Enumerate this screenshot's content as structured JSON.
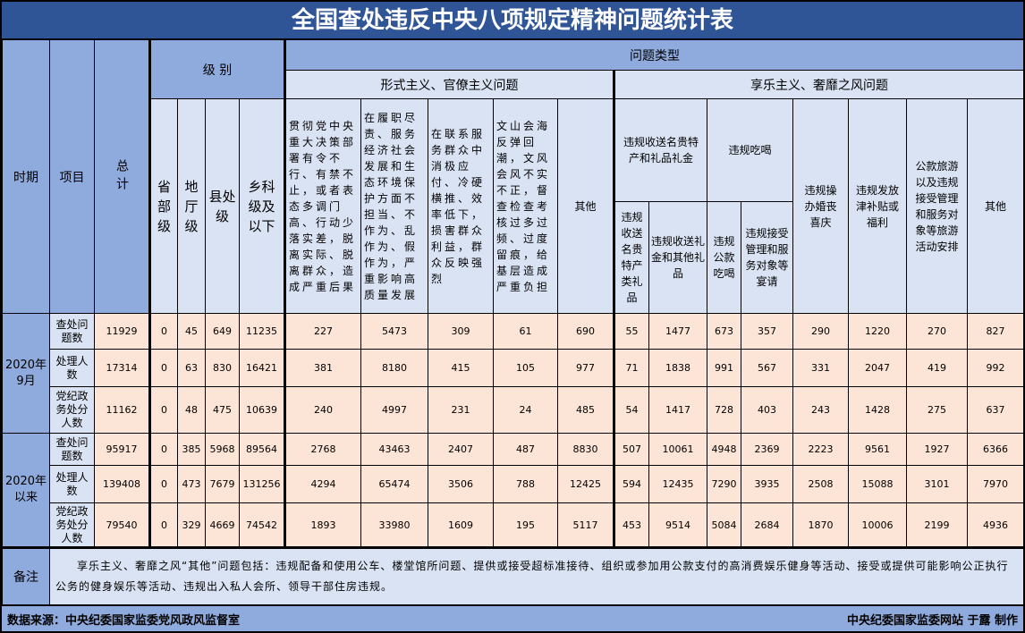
{
  "title": "全国查处违反中央八项规定精神问题统计表",
  "headers": {
    "period": "时期",
    "item": "项目",
    "total": "总计",
    "level": "级 别",
    "problem_type": "问题类型",
    "levels": [
      "省部级",
      "地厅级",
      "县处级",
      "乡科级及以下"
    ],
    "formalism": "形式主义、官僚主义问题",
    "formalism_cols": [
      "贯彻党中央重大决策部署有令不行、有禁不止，或者表态多调门高、行动少落实差，脱离实际、脱离群众，造成严重后果",
      "在履职尽责、服务经济社会发展和生态环境保护方面不担当、不作为、乱作为、假作为，严重影响高质量发展",
      "在联系服务群众中消极应付、冷硬横推、效率低下，损害群众利益，群众反映强烈",
      "文山会海反弹回潮，文风会风不实不正，督查检查考核过多过频、过度留痕，给基层造成严重负担",
      "其他"
    ],
    "hedonism": "享乐主义、奢靡之风问题",
    "gift_group": "违规收送名贵特产和礼品礼金",
    "gift_cols": [
      "违规收送名贵特产类礼品",
      "违规收送礼金和其他礼品"
    ],
    "meal_group": "违规吃喝",
    "meal_cols": [
      "违规公款吃喝",
      "违规接受管理和服务对象等宴请"
    ],
    "hedonism_cols": [
      "违规操办婚丧喜庆",
      "违规发放津补贴或福利",
      "公款旅游以及违规接受管理和服务对象等旅游活动安排",
      "其他"
    ]
  },
  "periods": [
    {
      "label": "2020年9月",
      "rows": [
        {
          "item": "查处问题数",
          "values": [
            "11929",
            "0",
            "45",
            "649",
            "11235",
            "227",
            "5473",
            "309",
            "61",
            "690",
            "55",
            "1477",
            "673",
            "357",
            "290",
            "1220",
            "270",
            "827"
          ]
        },
        {
          "item": "处理人数",
          "values": [
            "17314",
            "0",
            "63",
            "830",
            "16421",
            "381",
            "8180",
            "415",
            "105",
            "977",
            "71",
            "1838",
            "991",
            "567",
            "331",
            "2047",
            "419",
            "992"
          ]
        },
        {
          "item": "党纪政务处分人数",
          "values": [
            "11162",
            "0",
            "48",
            "475",
            "10639",
            "240",
            "4997",
            "231",
            "24",
            "485",
            "54",
            "1417",
            "728",
            "403",
            "243",
            "1428",
            "275",
            "637"
          ]
        }
      ]
    },
    {
      "label": "2020年以来",
      "rows": [
        {
          "item": "查处问题数",
          "values": [
            "95917",
            "0",
            "385",
            "5968",
            "89564",
            "2768",
            "43463",
            "2407",
            "487",
            "8830",
            "507",
            "10061",
            "4948",
            "2369",
            "2223",
            "9561",
            "1927",
            "6366"
          ]
        },
        {
          "item": "处理人数",
          "values": [
            "139408",
            "0",
            "473",
            "7679",
            "131256",
            "4294",
            "65474",
            "3506",
            "788",
            "12425",
            "594",
            "12435",
            "7290",
            "3935",
            "2508",
            "15088",
            "3101",
            "7970"
          ]
        },
        {
          "item": "党纪政务处分人数",
          "values": [
            "79540",
            "0",
            "329",
            "4669",
            "74542",
            "1893",
            "33980",
            "1609",
            "195",
            "5117",
            "453",
            "9514",
            "5084",
            "2684",
            "1870",
            "10006",
            "2199",
            "4936"
          ]
        }
      ]
    }
  ],
  "note": {
    "label": "备注",
    "text": "享乐主义、奢靡之风“其他”问题包括：违规配备和使用公车、楼堂馆所问题、提供或接受超标准接待、组织或参加用公款支付的高消费娱乐健身等活动、接受或提供可能影响公正执行公务的健身娱乐等活动、违规出入私人会所、领导干部住房违规。"
  },
  "footer": {
    "source": "数据来源：中央纪委国家监委党风政风监督室",
    "credit": "中央纪委国家监委网站 于露 制作"
  },
  "colors": {
    "title_bg": "#2f5597",
    "header_bg": "#8faadc",
    "subheader_bg": "#dae3f3",
    "data_bg": "#fce4d6"
  }
}
